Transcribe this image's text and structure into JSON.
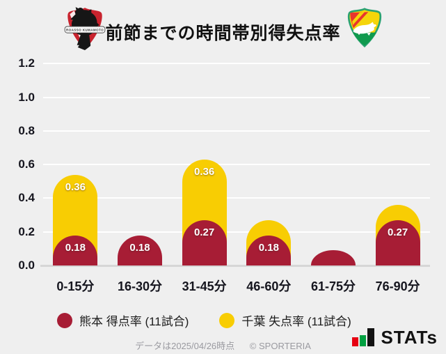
{
  "header": {
    "title": "前節までの時間帯別得失点率",
    "left_logo": "roasso-kumamoto-crest",
    "left_logo_text": "ROASSO KUMAMOTO",
    "right_logo": "jef-united-chiba-crest"
  },
  "chart_data": {
    "type": "bar",
    "stacked": true,
    "title": "前節までの時間帯別得失点率",
    "categories": [
      "0-15分",
      "16-30分",
      "31-45分",
      "46-60分",
      "61-75分",
      "76-90分"
    ],
    "series": [
      {
        "name": "熊本 得点率 (11試合)",
        "color": "#a71d35",
        "values": [
          0.18,
          0.18,
          0.27,
          0.18,
          0.09,
          0.27
        ],
        "labels": [
          "0.18",
          "0.18",
          "0.27",
          "0.18",
          "",
          "0.27"
        ]
      },
      {
        "name": "千葉 失点率 (11試合)",
        "color": "#f8cd03",
        "values": [
          0.36,
          0,
          0.36,
          0.09,
          0,
          0.09
        ],
        "labels": [
          "0.36",
          "",
          "0.36",
          "",
          "",
          ""
        ]
      }
    ],
    "ylim": [
      0,
      1.2
    ],
    "yticks": [
      "1.2",
      "1.0",
      "0.8",
      "0.6",
      "0.4",
      "0.2",
      "0.0"
    ],
    "grid": true,
    "legend_position": "bottom",
    "background": "#efefef",
    "gridline_color": "#ffffff",
    "baseline_color": "#d6d6d6"
  },
  "legend": {
    "items": [
      {
        "label": "熊本 得点率 (11試合)",
        "color": "#a71d35"
      },
      {
        "label": "千葉 失点率 (11試合)",
        "color": "#f8cd03"
      }
    ]
  },
  "footer": {
    "note": "データは2025/04/26時点",
    "copyright": "© SPORTERIA",
    "brand": "STATs"
  }
}
